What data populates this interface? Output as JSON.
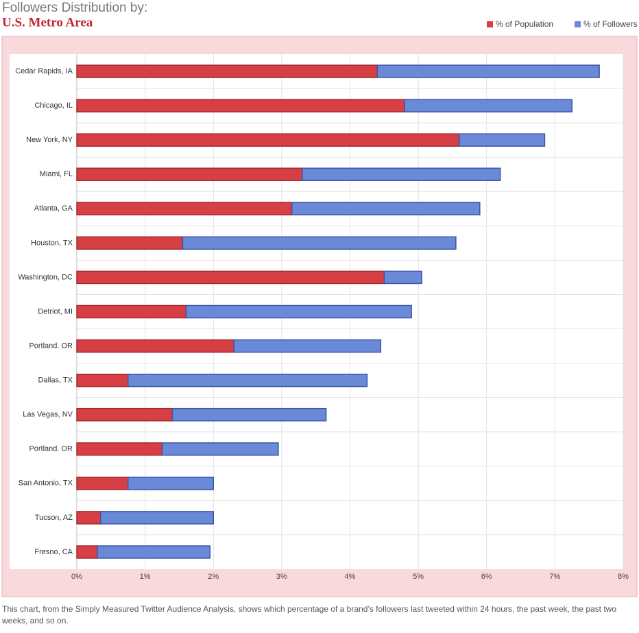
{
  "chart_data": {
    "type": "stacked-barh",
    "title": "Followers Distribution by:",
    "subtitle": "U.S. Metro Area",
    "caption": "This chart, from the Simply Measured Twitter Audience Analysis, shows which percentage of a brand’s followers last tweeted within 24 hours, the past week, the past two weeks, and so on.",
    "categories": [
      "Cedar Rapids, IA",
      "Chicago, IL",
      "New York, NY",
      "Miami, FL",
      "Atlanta, GA",
      "Houston, TX",
      "Washington, DC",
      "Detriot, MI",
      "Portland. OR",
      "Dallas, TX",
      "Las Vegas, NV",
      "Portland. OR",
      "San Antonio, TX",
      "Tucson, AZ",
      "Fresno, CA"
    ],
    "series": [
      {
        "name": "% of Population",
        "color": "#d64045",
        "values": [
          4.4,
          4.8,
          5.6,
          3.3,
          3.15,
          1.55,
          4.5,
          1.6,
          2.3,
          0.75,
          1.4,
          1.25,
          0.75,
          0.35,
          0.3
        ]
      },
      {
        "name": "% of Followers",
        "color": "#6a8ad8",
        "values": [
          3.25,
          2.45,
          1.25,
          2.9,
          2.75,
          4.0,
          0.55,
          3.3,
          2.15,
          3.5,
          2.25,
          1.7,
          1.25,
          1.65,
          1.65
        ]
      }
    ],
    "xlim": [
      0,
      8
    ],
    "xticks": [
      {
        "value": 0,
        "label": "0%"
      },
      {
        "value": 1,
        "label": "1%"
      },
      {
        "value": 2,
        "label": "2%"
      },
      {
        "value": 3,
        "label": "3%"
      },
      {
        "value": 4,
        "label": "4%"
      },
      {
        "value": 5,
        "label": "5%"
      },
      {
        "value": 6,
        "label": "6%"
      },
      {
        "value": 7,
        "label": "7%"
      },
      {
        "value": 8,
        "label": "8%"
      }
    ],
    "grid": true
  }
}
